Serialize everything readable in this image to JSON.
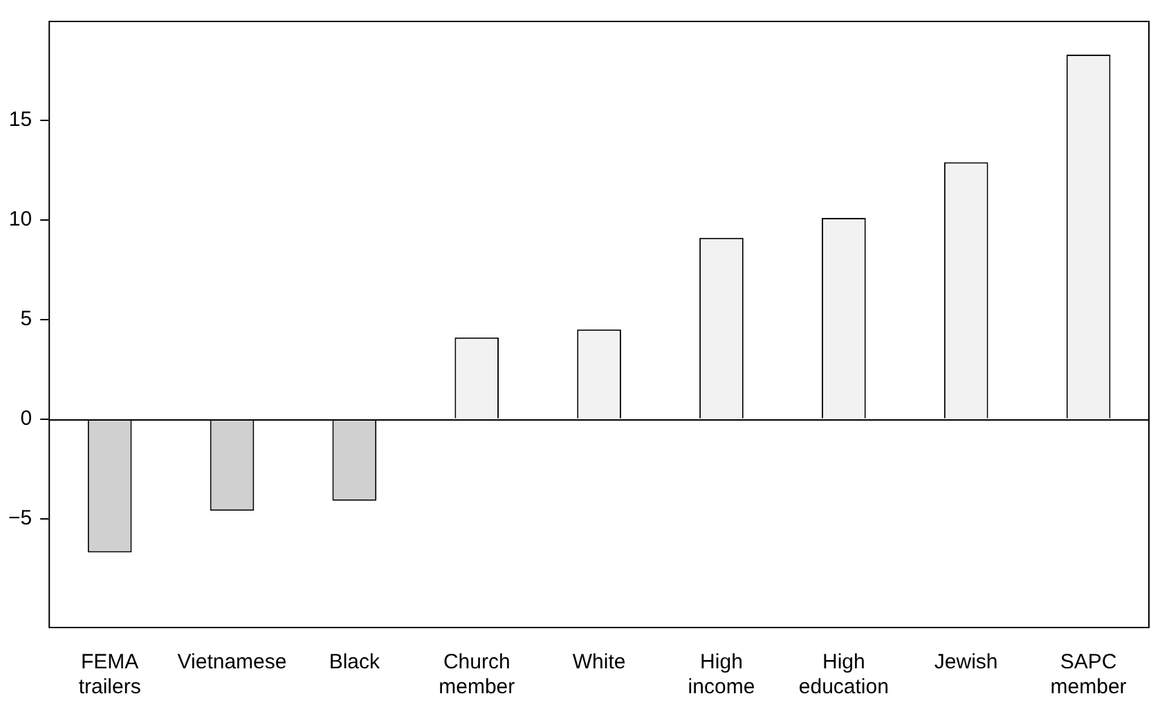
{
  "chart_data": {
    "type": "bar",
    "categories": [
      "FEMA trailers",
      "Vietnamese",
      "Black",
      "Church member",
      "White",
      "High income",
      "High education",
      "Jewish",
      "SAPC member"
    ],
    "values": [
      -6.7,
      -4.6,
      -4.1,
      4.1,
      4.5,
      9.1,
      10.1,
      12.9,
      18.3
    ],
    "colors": [
      "#d0d0d0",
      "#d0d0d0",
      "#d0d0d0",
      "#f2f2f2",
      "#f2f2f2",
      "#f2f2f2",
      "#f2f2f2",
      "#f2f2f2",
      "#f2f2f2"
    ],
    "ylim": [
      -10.5,
      20
    ],
    "yticks": [
      {
        "value": -5,
        "label": "−5"
      },
      0,
      5,
      10,
      15
    ],
    "ref_lines": [
      {
        "axis": "y",
        "value": 0,
        "color": "#000000"
      }
    ],
    "grid": false,
    "legend": false
  }
}
